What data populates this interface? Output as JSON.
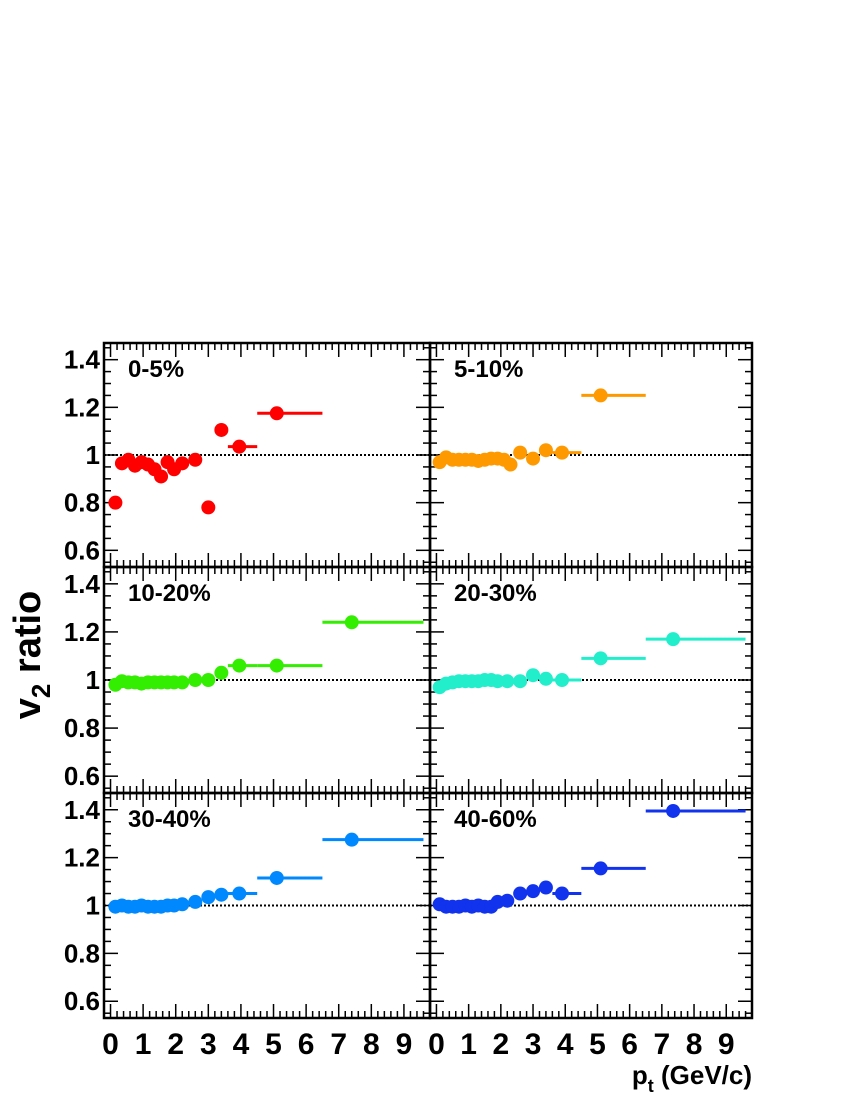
{
  "chart_data": {
    "type": "scatter",
    "ylabel_main": "v",
    "ylabel_sub": "2",
    "ylabel_rest": " ratio",
    "xlabel_main": "p",
    "xlabel_sub": "t",
    "xlabel_rest": " (GeV/c)",
    "xlim": [
      -0.2,
      9.8
    ],
    "ylim": [
      0.53,
      1.47
    ],
    "reference_line": 1,
    "xticks_left": [
      "0",
      "1",
      "2",
      "3",
      "4",
      "5",
      "6",
      "7",
      "8",
      "9"
    ],
    "xticks_right": [
      "0",
      "1",
      "2",
      "3",
      "4",
      "5",
      "6",
      "7",
      "8",
      "9"
    ],
    "yticks": [
      "0.6",
      "0.8",
      "1",
      "1.2",
      "1.4"
    ],
    "panels": [
      {
        "label": "0-5%",
        "color": "#ff0000",
        "points": [
          {
            "x": 0.15,
            "y": 0.8
          },
          {
            "x": 0.35,
            "y": 0.965
          },
          {
            "x": 0.55,
            "y": 0.98
          },
          {
            "x": 0.75,
            "y": 0.955
          },
          {
            "x": 0.95,
            "y": 0.97
          },
          {
            "x": 1.15,
            "y": 0.96
          },
          {
            "x": 1.35,
            "y": 0.94
          },
          {
            "x": 1.55,
            "y": 0.91
          },
          {
            "x": 1.75,
            "y": 0.97
          },
          {
            "x": 1.95,
            "y": 0.94
          },
          {
            "x": 2.2,
            "y": 0.965
          },
          {
            "x": 2.6,
            "y": 0.98
          },
          {
            "x": 3.0,
            "y": 0.78
          },
          {
            "x": 3.4,
            "y": 1.105
          },
          {
            "x": 3.95,
            "y": 1.035,
            "xerr": [
              3.6,
              4.5
            ]
          },
          {
            "x": 5.1,
            "y": 1.175,
            "xerr": [
              4.5,
              6.5
            ]
          }
        ]
      },
      {
        "label": "5-10%",
        "color": "#ff9900",
        "points": [
          {
            "x": 0.1,
            "y": 0.97
          },
          {
            "x": 0.3,
            "y": 0.99
          },
          {
            "x": 0.5,
            "y": 0.98
          },
          {
            "x": 0.7,
            "y": 0.98
          },
          {
            "x": 0.9,
            "y": 0.98
          },
          {
            "x": 1.1,
            "y": 0.98
          },
          {
            "x": 1.3,
            "y": 0.975
          },
          {
            "x": 1.5,
            "y": 0.98
          },
          {
            "x": 1.7,
            "y": 0.985
          },
          {
            "x": 1.9,
            "y": 0.985
          },
          {
            "x": 2.1,
            "y": 0.98
          },
          {
            "x": 2.3,
            "y": 0.96
          },
          {
            "x": 2.6,
            "y": 1.01
          },
          {
            "x": 3.0,
            "y": 0.985
          },
          {
            "x": 3.4,
            "y": 1.02
          },
          {
            "x": 3.9,
            "y": 1.01,
            "xerr": [
              3.6,
              4.5
            ]
          },
          {
            "x": 5.1,
            "y": 1.25,
            "xerr": [
              4.5,
              6.5
            ]
          }
        ]
      },
      {
        "label": "10-20%",
        "color": "#33ee00",
        "points": [
          {
            "x": 0.15,
            "y": 0.98
          },
          {
            "x": 0.35,
            "y": 0.995
          },
          {
            "x": 0.55,
            "y": 0.99
          },
          {
            "x": 0.75,
            "y": 0.99
          },
          {
            "x": 0.95,
            "y": 0.985
          },
          {
            "x": 1.15,
            "y": 0.99
          },
          {
            "x": 1.35,
            "y": 0.99
          },
          {
            "x": 1.55,
            "y": 0.99
          },
          {
            "x": 1.75,
            "y": 0.99
          },
          {
            "x": 1.95,
            "y": 0.99
          },
          {
            "x": 2.2,
            "y": 0.99
          },
          {
            "x": 2.6,
            "y": 1.0
          },
          {
            "x": 3.0,
            "y": 1.0
          },
          {
            "x": 3.4,
            "y": 1.03
          },
          {
            "x": 3.95,
            "y": 1.06,
            "xerr": [
              3.6,
              4.5
            ]
          },
          {
            "x": 5.1,
            "y": 1.06,
            "xerr": [
              4.5,
              6.5
            ]
          },
          {
            "x": 7.4,
            "y": 1.24,
            "xerr": [
              6.5,
              9.6
            ]
          }
        ]
      },
      {
        "label": "20-30%",
        "color": "#22eecc",
        "points": [
          {
            "x": 0.1,
            "y": 0.97
          },
          {
            "x": 0.3,
            "y": 0.985
          },
          {
            "x": 0.5,
            "y": 0.99
          },
          {
            "x": 0.7,
            "y": 0.995
          },
          {
            "x": 0.9,
            "y": 0.995
          },
          {
            "x": 1.1,
            "y": 0.995
          },
          {
            "x": 1.3,
            "y": 0.995
          },
          {
            "x": 1.5,
            "y": 1.0
          },
          {
            "x": 1.7,
            "y": 1.0
          },
          {
            "x": 1.9,
            "y": 0.995
          },
          {
            "x": 2.2,
            "y": 0.995
          },
          {
            "x": 2.6,
            "y": 0.995
          },
          {
            "x": 3.0,
            "y": 1.02
          },
          {
            "x": 3.4,
            "y": 1.005
          },
          {
            "x": 3.9,
            "y": 1.0,
            "xerr": [
              3.6,
              4.5
            ]
          },
          {
            "x": 5.1,
            "y": 1.09,
            "xerr": [
              4.5,
              6.5
            ]
          },
          {
            "x": 7.35,
            "y": 1.17,
            "xerr": [
              6.5,
              9.6
            ]
          }
        ]
      },
      {
        "label": "30-40%",
        "color": "#0088ff",
        "points": [
          {
            "x": 0.15,
            "y": 0.995
          },
          {
            "x": 0.35,
            "y": 1.0
          },
          {
            "x": 0.55,
            "y": 0.995
          },
          {
            "x": 0.75,
            "y": 0.995
          },
          {
            "x": 0.95,
            "y": 1.0
          },
          {
            "x": 1.15,
            "y": 0.995
          },
          {
            "x": 1.35,
            "y": 0.995
          },
          {
            "x": 1.55,
            "y": 0.995
          },
          {
            "x": 1.75,
            "y": 1.0
          },
          {
            "x": 1.95,
            "y": 1.0
          },
          {
            "x": 2.2,
            "y": 1.005
          },
          {
            "x": 2.6,
            "y": 1.015
          },
          {
            "x": 3.0,
            "y": 1.035
          },
          {
            "x": 3.4,
            "y": 1.045
          },
          {
            "x": 3.95,
            "y": 1.05,
            "xerr": [
              3.6,
              4.5
            ]
          },
          {
            "x": 5.1,
            "y": 1.115,
            "xerr": [
              4.5,
              6.5
            ]
          },
          {
            "x": 7.4,
            "y": 1.275,
            "xerr": [
              6.5,
              9.6
            ]
          }
        ]
      },
      {
        "label": "40-60%",
        "color": "#1133ee",
        "points": [
          {
            "x": 0.1,
            "y": 1.005
          },
          {
            "x": 0.3,
            "y": 0.995
          },
          {
            "x": 0.5,
            "y": 0.995
          },
          {
            "x": 0.7,
            "y": 0.995
          },
          {
            "x": 0.9,
            "y": 1.0
          },
          {
            "x": 1.1,
            "y": 0.995
          },
          {
            "x": 1.3,
            "y": 1.0
          },
          {
            "x": 1.5,
            "y": 0.995
          },
          {
            "x": 1.7,
            "y": 0.995
          },
          {
            "x": 1.9,
            "y": 1.015
          },
          {
            "x": 2.2,
            "y": 1.02
          },
          {
            "x": 2.6,
            "y": 1.05
          },
          {
            "x": 3.0,
            "y": 1.06
          },
          {
            "x": 3.4,
            "y": 1.075
          },
          {
            "x": 3.9,
            "y": 1.05,
            "xerr": [
              3.6,
              4.5
            ]
          },
          {
            "x": 5.1,
            "y": 1.155,
            "xerr": [
              4.5,
              6.5
            ]
          },
          {
            "x": 7.35,
            "y": 1.395,
            "xerr": [
              6.5,
              9.6
            ]
          }
        ]
      }
    ]
  }
}
